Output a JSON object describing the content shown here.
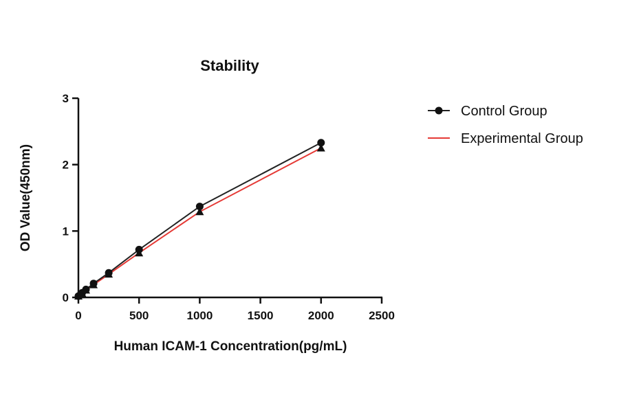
{
  "chart_data": {
    "type": "scatter",
    "title": "Stability",
    "xlabel": "Human ICAM-1 Concentration(pg/mL)",
    "ylabel": "OD Value(450nm)",
    "xlim": [
      0,
      2500
    ],
    "ylim": [
      0,
      3
    ],
    "xticks": [
      "0",
      "500",
      "1000",
      "1500",
      "2000",
      "2500"
    ],
    "yticks": [
      "0",
      "1",
      "2",
      "3"
    ],
    "grid": false,
    "legend_position": "right",
    "x": [
      0,
      15.6,
      31.25,
      62.5,
      125,
      250,
      500,
      1000,
      2000
    ],
    "series": [
      {
        "name": "Control Group",
        "marker": "circle",
        "line_color": "#222222",
        "values": [
          0.02,
          0.04,
          0.07,
          0.12,
          0.21,
          0.37,
          0.72,
          1.37,
          2.33
        ]
      },
      {
        "name": "Experimental Group",
        "marker": "triangle",
        "line_color": "#e53935",
        "values": [
          0.02,
          0.04,
          0.06,
          0.11,
          0.19,
          0.35,
          0.67,
          1.29,
          2.25
        ]
      }
    ]
  }
}
